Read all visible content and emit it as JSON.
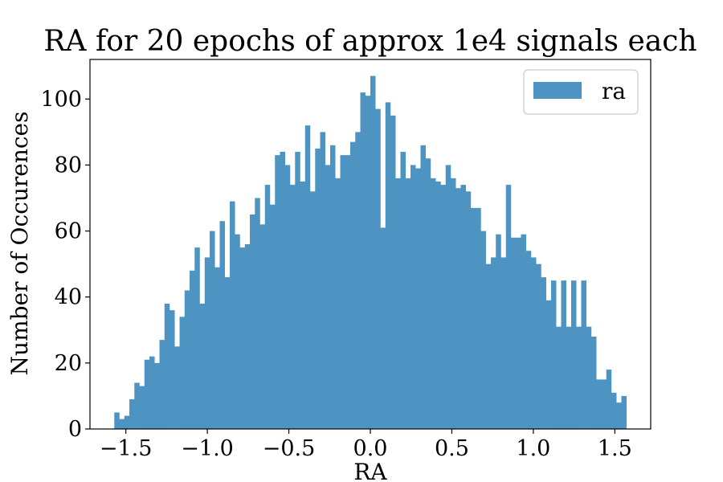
{
  "chart_data": {
    "type": "bar",
    "title": "RA for 20 epochs of approx 1e4 signals each",
    "xlabel": "RA",
    "ylabel": "Number of Occurences",
    "xlim": [
      -1.72,
      1.72
    ],
    "ylim": [
      0,
      112
    ],
    "xticks": [
      -1.5,
      -1.0,
      -0.5,
      0.0,
      0.5,
      1.0,
      1.5
    ],
    "xtick_labels": [
      "−1.5",
      "−1.0",
      "−0.5",
      "0.0",
      "0.5",
      "1.0",
      "1.5"
    ],
    "yticks": [
      0,
      20,
      40,
      60,
      80,
      100
    ],
    "ytick_labels": [
      "0",
      "20",
      "40",
      "60",
      "80",
      "100"
    ],
    "bin_start": -1.5708,
    "bin_end": 1.5708,
    "color": "#4e94c3",
    "grid": false,
    "legend_position": "top-right",
    "series": [
      {
        "name": "ra",
        "values": [
          5,
          3,
          4,
          9,
          14,
          13,
          21,
          22,
          20,
          27,
          38,
          36,
          25,
          34,
          42,
          48,
          55,
          38,
          52,
          60,
          49,
          63,
          46,
          69,
          59,
          55,
          56,
          65,
          70,
          62,
          74,
          68,
          83,
          84,
          80,
          74,
          84,
          75,
          92,
          72,
          85,
          90,
          80,
          86,
          76,
          83,
          83,
          87,
          90,
          102,
          101,
          107,
          97,
          61,
          99,
          95,
          76,
          84,
          76,
          80,
          79,
          86,
          82,
          76,
          75,
          74,
          80,
          76,
          73,
          74,
          72,
          67,
          67,
          60,
          50,
          52,
          59,
          52,
          74,
          58,
          58,
          59,
          54,
          52,
          50,
          46,
          39,
          45,
          31,
          45,
          31,
          45,
          31,
          45,
          31,
          28,
          15,
          15,
          18,
          11,
          8,
          10
        ]
      }
    ]
  }
}
